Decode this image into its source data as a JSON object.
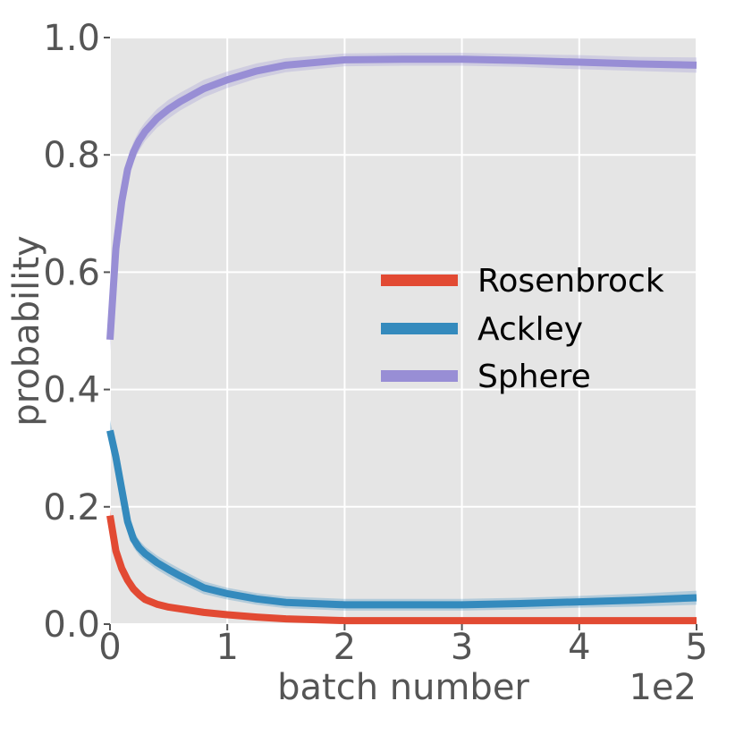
{
  "chart_data": {
    "type": "line",
    "title": "",
    "xlabel": "batch number",
    "ylabel": "probability",
    "x_scale_label": "1e2",
    "xlim": [
      0,
      5
    ],
    "ylim": [
      0,
      1
    ],
    "xticks": [
      0,
      1,
      2,
      3,
      4,
      5
    ],
    "xtick_labels": [
      "0",
      "1",
      "2",
      "3",
      "4",
      "5"
    ],
    "yticks": [
      0,
      0.2,
      0.4,
      0.6,
      0.8,
      1.0
    ],
    "ytick_labels": [
      "0.0",
      "0.2",
      "0.4",
      "0.6",
      "0.8",
      "1.0"
    ],
    "grid": true,
    "legend_position": "center-right",
    "series": [
      {
        "name": "Rosenbrock",
        "color": "#e24a33",
        "x": [
          0.0,
          0.05,
          0.1,
          0.15,
          0.2,
          0.25,
          0.3,
          0.4,
          0.5,
          0.6,
          0.8,
          1.0,
          1.25,
          1.5,
          2.0,
          2.5,
          3.0,
          3.5,
          4.0,
          4.5,
          5.0
        ],
        "y": [
          0.185,
          0.125,
          0.095,
          0.075,
          0.06,
          0.05,
          0.042,
          0.034,
          0.029,
          0.026,
          0.02,
          0.016,
          0.012,
          0.009,
          0.006,
          0.006,
          0.006,
          0.006,
          0.006,
          0.006,
          0.006
        ],
        "band": [
          0.012,
          0.012,
          0.011,
          0.01,
          0.009,
          0.008,
          0.007,
          0.006,
          0.005,
          0.005,
          0.004,
          0.004,
          0.003,
          0.003,
          0.002,
          0.002,
          0.002,
          0.002,
          0.002,
          0.002,
          0.002
        ]
      },
      {
        "name": "Ackley",
        "color": "#348abd",
        "x": [
          0.0,
          0.05,
          0.1,
          0.15,
          0.2,
          0.25,
          0.3,
          0.4,
          0.5,
          0.6,
          0.8,
          1.0,
          1.25,
          1.5,
          2.0,
          2.5,
          3.0,
          3.5,
          4.0,
          4.5,
          5.0
        ],
        "y": [
          0.33,
          0.285,
          0.23,
          0.175,
          0.145,
          0.13,
          0.12,
          0.105,
          0.093,
          0.082,
          0.062,
          0.052,
          0.043,
          0.037,
          0.033,
          0.033,
          0.033,
          0.035,
          0.038,
          0.041,
          0.045
        ],
        "band": [
          0.018,
          0.017,
          0.016,
          0.015,
          0.014,
          0.013,
          0.012,
          0.012,
          0.012,
          0.012,
          0.011,
          0.01,
          0.01,
          0.01,
          0.01,
          0.01,
          0.01,
          0.01,
          0.01,
          0.011,
          0.012
        ]
      },
      {
        "name": "Sphere",
        "color": "#988ed5",
        "x": [
          0.0,
          0.05,
          0.1,
          0.15,
          0.2,
          0.25,
          0.3,
          0.4,
          0.5,
          0.6,
          0.8,
          1.0,
          1.25,
          1.5,
          2.0,
          2.5,
          3.0,
          3.5,
          4.0,
          4.5,
          5.0
        ],
        "y": [
          0.485,
          0.64,
          0.72,
          0.775,
          0.805,
          0.825,
          0.84,
          0.862,
          0.878,
          0.891,
          0.913,
          0.928,
          0.943,
          0.953,
          0.962,
          0.963,
          0.963,
          0.961,
          0.958,
          0.955,
          0.953
        ],
        "band": [
          0.02,
          0.02,
          0.018,
          0.018,
          0.017,
          0.017,
          0.016,
          0.016,
          0.016,
          0.015,
          0.015,
          0.014,
          0.013,
          0.012,
          0.011,
          0.011,
          0.011,
          0.011,
          0.012,
          0.012,
          0.013
        ]
      }
    ]
  }
}
